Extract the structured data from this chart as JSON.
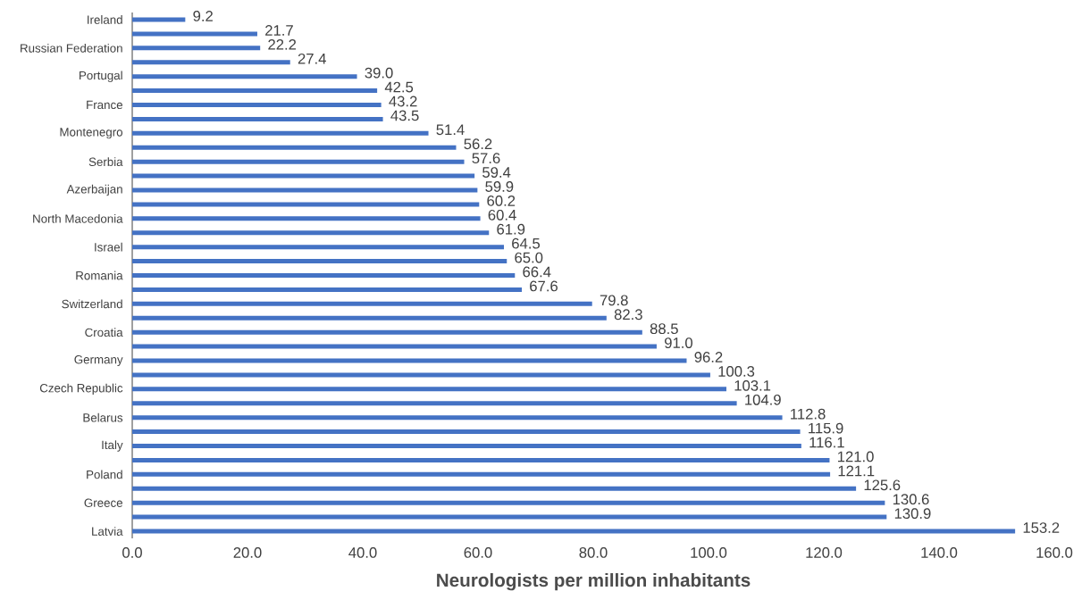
{
  "chart_data": {
    "type": "bar",
    "orientation": "horizontal",
    "xlabel": "Neurologists per million inhabitants",
    "categories": [
      "Ireland",
      null,
      "Russian Federation",
      null,
      "Portugal",
      null,
      "France",
      null,
      "Montenegro",
      null,
      "Serbia",
      null,
      "Azerbaijan",
      null,
      "North Macedonia",
      null,
      "Israel",
      null,
      "Romania",
      null,
      "Switzerland",
      null,
      "Croatia",
      null,
      "Germany",
      null,
      "Czech Republic",
      null,
      "Belarus",
      null,
      "Italy",
      null,
      "Poland",
      null,
      "Greece",
      null,
      "Latvia"
    ],
    "values": [
      9.2,
      21.7,
      22.2,
      27.4,
      39.0,
      42.5,
      43.2,
      43.5,
      51.4,
      56.2,
      57.6,
      59.4,
      59.9,
      60.2,
      60.4,
      61.9,
      64.5,
      65.0,
      66.4,
      67.6,
      79.8,
      82.3,
      88.5,
      91.0,
      96.2,
      100.3,
      103.1,
      104.9,
      112.8,
      115.9,
      116.1,
      121.0,
      121.1,
      125.6,
      130.6,
      130.9,
      153.2
    ],
    "value_labels": [
      "9.2",
      "21.7",
      "22.2",
      "27.4",
      "39.0",
      "42.5",
      "43.2",
      "43.5",
      "51.4",
      "56.2",
      "57.6",
      "59.4",
      "59.9",
      "60.2",
      "60.4",
      "61.9",
      "64.5",
      "65.0",
      "66.4",
      "67.6",
      "79.8",
      "82.3",
      "88.5",
      "91.0",
      "96.2",
      "100.3",
      "103.1",
      "104.9",
      "112.8",
      "115.9",
      "116.1",
      "121.0",
      "121.1",
      "125.6",
      "130.6",
      "130.9",
      "153.2"
    ],
    "color": "#4472c4",
    "xlim": [
      0,
      160
    ],
    "xticks": [
      {
        "value": 0,
        "label": "0.0"
      },
      {
        "value": 20,
        "label": "20.0"
      },
      {
        "value": 40,
        "label": "40.0"
      },
      {
        "value": 60,
        "label": "60.0"
      },
      {
        "value": 80,
        "label": "80.0"
      },
      {
        "value": 100,
        "label": "100.0"
      },
      {
        "value": 120,
        "label": "120.0"
      },
      {
        "value": 140,
        "label": "140.0"
      },
      {
        "value": 160,
        "label": "160.0"
      }
    ],
    "grid": false
  }
}
